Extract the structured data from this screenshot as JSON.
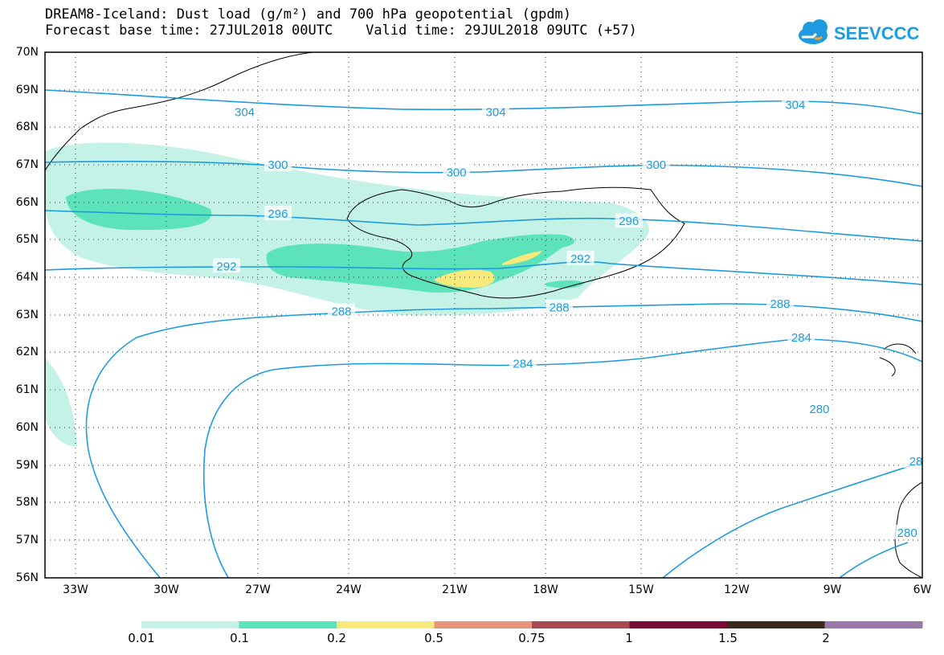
{
  "title": {
    "line1": "DREAM8-Iceland: Dust load (g/m²) and 700 hPa geopotential (gpdm)",
    "line2": "Forecast base time: 27JUL2018 00UTC    Valid time: 29JUL2018 09UTC (+57)"
  },
  "logo": {
    "text": "SEEVCCC",
    "icon": "cloud-icon",
    "color": "#1e9be0"
  },
  "axes": {
    "lat_labels": [
      "70N",
      "69N",
      "68N",
      "67N",
      "66N",
      "65N",
      "64N",
      "63N",
      "62N",
      "61N",
      "60N",
      "59N",
      "58N",
      "57N",
      "56N"
    ],
    "lon_labels": [
      "33W",
      "30W",
      "27W",
      "24W",
      "21W",
      "18W",
      "15W",
      "12W",
      "9W",
      "6W"
    ],
    "lat_range": [
      56,
      70
    ],
    "lon_range": [
      -35,
      -6
    ],
    "grid": "dotted"
  },
  "contours": {
    "color": "#1e9be0",
    "labels": [
      {
        "text": "304",
        "lon": -28.4,
        "lat": 68.4
      },
      {
        "text": "304",
        "lon": -20.1,
        "lat": 68.4
      },
      {
        "text": "304",
        "lon": -10.2,
        "lat": 68.6
      },
      {
        "text": "300",
        "lon": -27.3,
        "lat": 67.0
      },
      {
        "text": "300",
        "lon": -21.4,
        "lat": 66.8
      },
      {
        "text": "300",
        "lon": -14.8,
        "lat": 67.0
      },
      {
        "text": "296",
        "lon": -27.3,
        "lat": 65.7
      },
      {
        "text": "296",
        "lon": -15.7,
        "lat": 65.5
      },
      {
        "text": "292",
        "lon": -29.0,
        "lat": 64.3
      },
      {
        "text": "292",
        "lon": -17.3,
        "lat": 64.5
      },
      {
        "text": "288",
        "lon": -25.2,
        "lat": 63.1
      },
      {
        "text": "288",
        "lon": -18.0,
        "lat": 63.2
      },
      {
        "text": "288",
        "lon": -10.7,
        "lat": 63.3
      },
      {
        "text": "284",
        "lon": -19.2,
        "lat": 61.7
      },
      {
        "text": "284",
        "lon": -10.0,
        "lat": 62.4
      },
      {
        "text": "280",
        "lon": -9.4,
        "lat": 60.5
      },
      {
        "text": "28",
        "lon": -6.2,
        "lat": 59.1
      },
      {
        "text": "280",
        "lon": -6.5,
        "lat": 57.2
      }
    ]
  },
  "colorbar": {
    "labels": [
      "0.01",
      "0.1",
      "0.2",
      "0.5",
      "0.75",
      "1",
      "1.5",
      "2"
    ],
    "colors": [
      "#c4f2e6",
      "#5de3ba",
      "#f7e97a",
      "#e8957a",
      "#a84a50",
      "#7a0a36",
      "#3b2a1a",
      "#9a79aa"
    ]
  }
}
